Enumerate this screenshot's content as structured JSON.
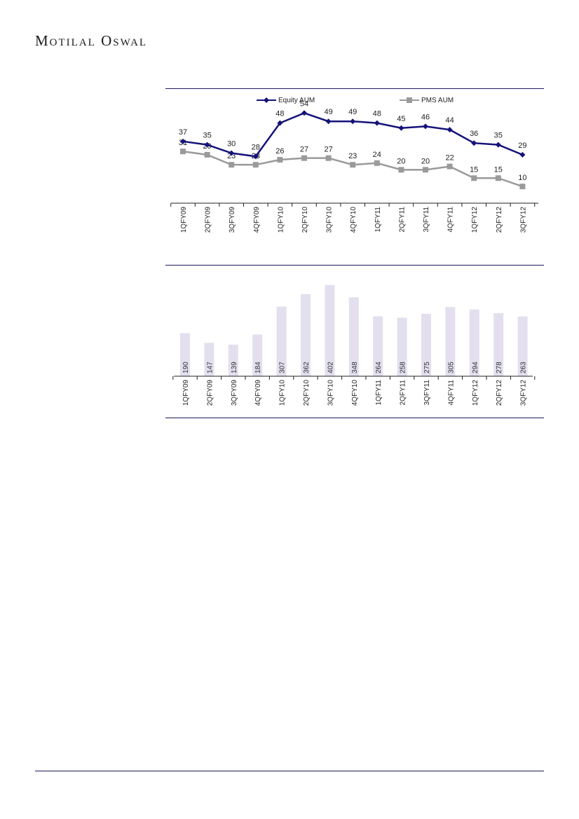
{
  "header": {
    "brand": "Motilal Oswal"
  },
  "colors": {
    "equity": "#14137a",
    "pms": "#9a9a9a",
    "bar": "#e3dfee",
    "rule": "#1d1a5e"
  },
  "chart_data": [
    {
      "type": "line",
      "categories": [
        "1QFY09",
        "2QFY09",
        "3QFY09",
        "4QFY09",
        "1QFY10",
        "2QFY10",
        "3QFY10",
        "4QFY10",
        "1QFY11",
        "2QFY11",
        "3QFY11",
        "4QFY11",
        "1QFY12",
        "2QFY12",
        "3QFY12"
      ],
      "series": [
        {
          "name": "Equity AUM",
          "values": [
            37,
            35,
            30,
            28,
            48,
            54,
            49,
            49,
            48,
            45,
            46,
            44,
            36,
            35,
            29
          ]
        },
        {
          "name": "PMS AUM",
          "values": [
            31,
            29,
            23,
            23,
            26,
            27,
            27,
            23,
            24,
            20,
            20,
            22,
            15,
            15,
            10
          ]
        }
      ],
      "ylim": [
        0,
        60
      ],
      "legend": "top",
      "grid": false
    },
    {
      "type": "bar",
      "categories": [
        "1QFY09",
        "2QFY09",
        "3QFY09",
        "4QFY09",
        "1QFY10",
        "2QFY10",
        "3QFY10",
        "4QFY10",
        "1QFY11",
        "2QFY11",
        "3QFY11",
        "4QFY11",
        "1QFY12",
        "2QFY12",
        "3QFY12"
      ],
      "values": [
        190,
        147,
        139,
        184,
        307,
        362,
        402,
        348,
        264,
        258,
        275,
        305,
        294,
        278,
        263
      ],
      "ylim": [
        0,
        420
      ],
      "grid": false
    }
  ]
}
